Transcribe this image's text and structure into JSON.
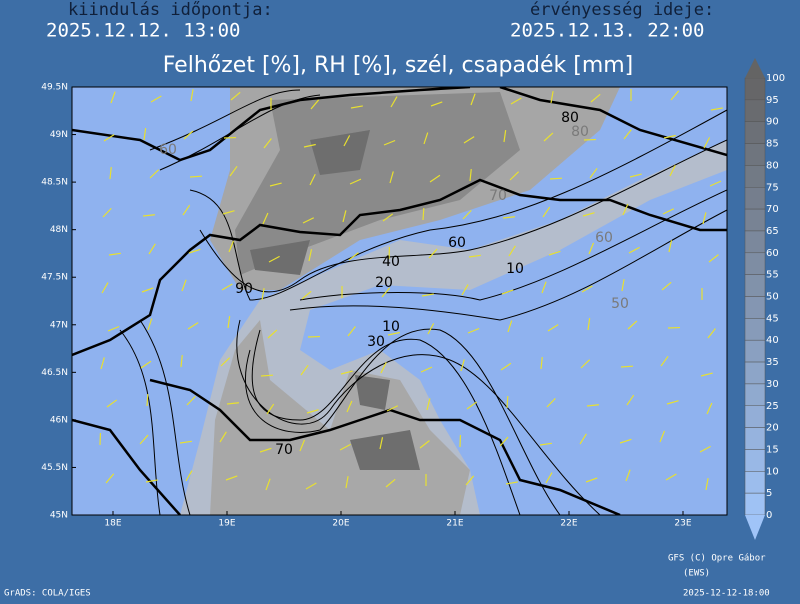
{
  "header": {
    "start_label": "kiindulás időpontja:",
    "start_time": "2025.12.12. 13:00",
    "valid_label": "érvényesség ideje:",
    "valid_time": "2025.12.13. 22:00"
  },
  "map": {
    "title": "Felhőzet [%], RH [%], szél, csapadék [mm]",
    "lat_labels": [
      "49.5N",
      "49N",
      "48.5N",
      "48N",
      "47.5N",
      "47N",
      "46.5N",
      "46N",
      "45.5N",
      "45N"
    ],
    "lon_labels": [
      "18E",
      "19E",
      "20E",
      "21E",
      "22E",
      "23E"
    ],
    "contour_labels": [
      "80",
      "90",
      "60",
      "40",
      "20",
      "10",
      "10",
      "30",
      "70"
    ],
    "rh_labels": [
      "60",
      "70",
      "60",
      "50",
      "80"
    ]
  },
  "colorbar": {
    "labels": [
      100,
      95,
      90,
      85,
      80,
      75,
      70,
      65,
      60,
      55,
      50,
      45,
      40,
      35,
      30,
      25,
      20,
      15,
      10,
      5,
      0
    ]
  },
  "footer": {
    "credit": "GFS (C) Opre Gábor",
    "credit_sub": "(EWS)",
    "software": "GrADS: COLA/IGES",
    "run": "2025-12-12-18:00"
  }
}
